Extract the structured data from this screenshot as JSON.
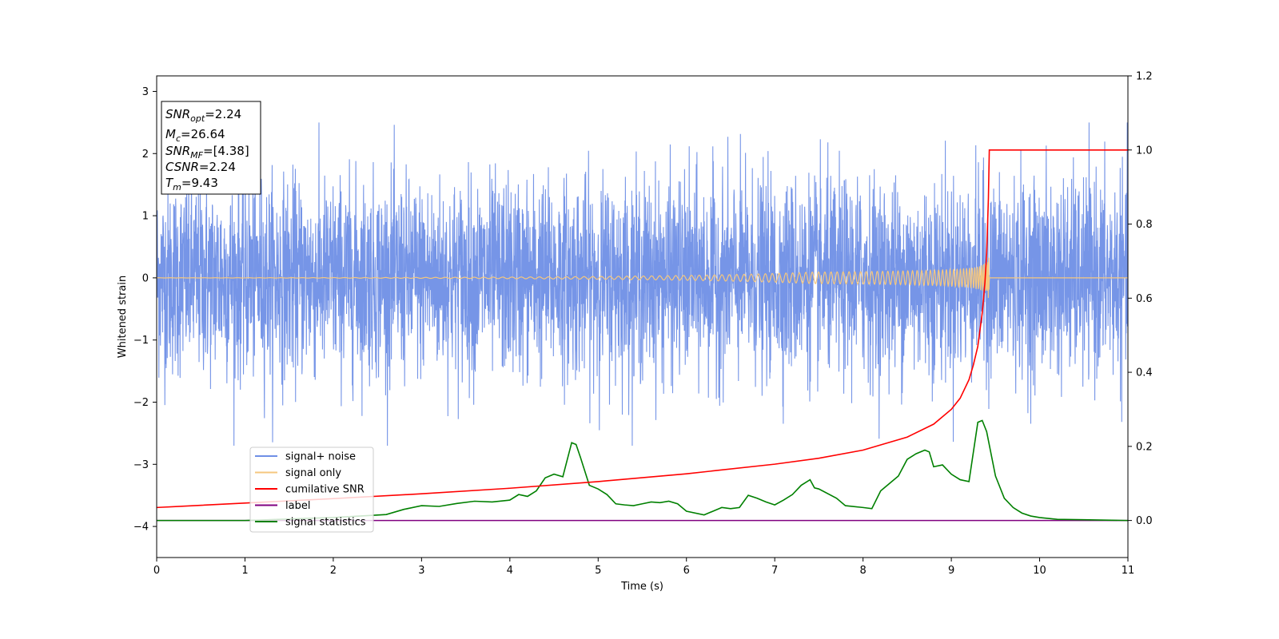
{
  "chart_data": {
    "type": "line",
    "xlabel": "Time (s)",
    "ylabel_left": "Whitened strain",
    "ylabel_right": "",
    "xlim": [
      0,
      11
    ],
    "ylim_left": [
      -4.5,
      3.25
    ],
    "ylim_right": [
      -0.1,
      1.2
    ],
    "x_ticks": [
      0,
      1,
      2,
      3,
      4,
      5,
      6,
      7,
      8,
      9,
      10,
      11
    ],
    "y_ticks_left": [
      3,
      2,
      1,
      0,
      -1,
      -2,
      -3,
      -4
    ],
    "y_ticks_right": [
      1.2,
      1.0,
      0.8,
      0.6,
      0.4,
      0.2,
      0.0
    ],
    "y_tick_labels_left": [
      "3",
      "2",
      "1",
      "0",
      "−1",
      "−2",
      "−3",
      "−4"
    ],
    "y_tick_labels_right": [
      "1.2",
      "1.0",
      "0.8",
      "0.6",
      "0.4",
      "0.2",
      "0.0"
    ],
    "grid": false,
    "legend_position": "lower-left",
    "series": [
      {
        "name": "signal+ noise",
        "color": "#6f8fe6",
        "axis": "left",
        "description_values": "noise trace roughly within -2.7 to 2.5 around 0 across 0-11 s"
      },
      {
        "name": "signal only",
        "color": "#f5c77e",
        "axis": "left",
        "chirp_end": 9.43,
        "peak_amplitude": 0.35
      },
      {
        "name": "cumilative SNR",
        "color": "#ff0000",
        "axis": "right",
        "x": [
          0,
          1,
          2,
          3,
          4,
          5,
          6,
          7,
          7.5,
          8,
          8.5,
          8.8,
          9.0,
          9.1,
          9.2,
          9.25,
          9.3,
          9.35,
          9.38,
          9.4,
          9.42,
          9.43,
          11
        ],
        "y": [
          0.035,
          0.047,
          0.059,
          0.072,
          0.087,
          0.105,
          0.126,
          0.152,
          0.168,
          0.19,
          0.225,
          0.26,
          0.3,
          0.33,
          0.38,
          0.42,
          0.47,
          0.56,
          0.64,
          0.72,
          0.87,
          1.0,
          1.0
        ]
      },
      {
        "name": "label",
        "color": "#800080",
        "axis": "right",
        "x": [
          0,
          11
        ],
        "y": [
          0.0,
          0.0
        ]
      },
      {
        "name": "signal statistics",
        "color": "#008000",
        "axis": "right",
        "x": [
          0,
          0.5,
          1,
          1.5,
          2,
          2.3,
          2.6,
          2.8,
          3.0,
          3.2,
          3.4,
          3.6,
          3.8,
          4.0,
          4.1,
          4.2,
          4.3,
          4.4,
          4.5,
          4.6,
          4.7,
          4.75,
          4.8,
          4.9,
          5.0,
          5.1,
          5.2,
          5.3,
          5.4,
          5.5,
          5.6,
          5.7,
          5.8,
          5.9,
          6.0,
          6.2,
          6.4,
          6.5,
          6.6,
          6.7,
          6.8,
          6.9,
          7.0,
          7.1,
          7.2,
          7.3,
          7.4,
          7.45,
          7.5,
          7.7,
          7.8,
          8.0,
          8.1,
          8.2,
          8.3,
          8.4,
          8.5,
          8.6,
          8.7,
          8.75,
          8.8,
          8.9,
          9.0,
          9.1,
          9.2,
          9.3,
          9.35,
          9.4,
          9.5,
          9.6,
          9.7,
          9.8,
          9.9,
          10.0,
          10.2,
          10.5,
          11.0
        ],
        "y": [
          0.0,
          0.0,
          0.0,
          0.004,
          0.008,
          0.012,
          0.016,
          0.03,
          0.04,
          0.038,
          0.046,
          0.052,
          0.05,
          0.055,
          0.07,
          0.065,
          0.08,
          0.115,
          0.125,
          0.118,
          0.21,
          0.205,
          0.17,
          0.095,
          0.085,
          0.07,
          0.045,
          0.042,
          0.04,
          0.045,
          0.05,
          0.048,
          0.052,
          0.045,
          0.025,
          0.015,
          0.035,
          0.032,
          0.035,
          0.068,
          0.06,
          0.05,
          0.042,
          0.055,
          0.07,
          0.095,
          0.11,
          0.088,
          0.085,
          0.06,
          0.04,
          0.035,
          0.032,
          0.08,
          0.1,
          0.12,
          0.165,
          0.18,
          0.19,
          0.185,
          0.145,
          0.15,
          0.125,
          0.11,
          0.105,
          0.265,
          0.27,
          0.24,
          0.12,
          0.06,
          0.035,
          0.02,
          0.012,
          0.008,
          0.003,
          0.002,
          0.0
        ]
      }
    ],
    "annotation": {
      "lines": [
        {
          "main": "SNR",
          "sub": "opt",
          "value": "=2.24"
        },
        {
          "main": "M",
          "sub": "c",
          "value": "=26.64"
        },
        {
          "main": "SNR",
          "sub": "MF",
          "value": "=[4.38]"
        },
        {
          "main": "CSNR",
          "sub": "",
          "value": "=2.24"
        },
        {
          "main": "T",
          "sub": "m",
          "value": "=9.43"
        }
      ]
    }
  }
}
